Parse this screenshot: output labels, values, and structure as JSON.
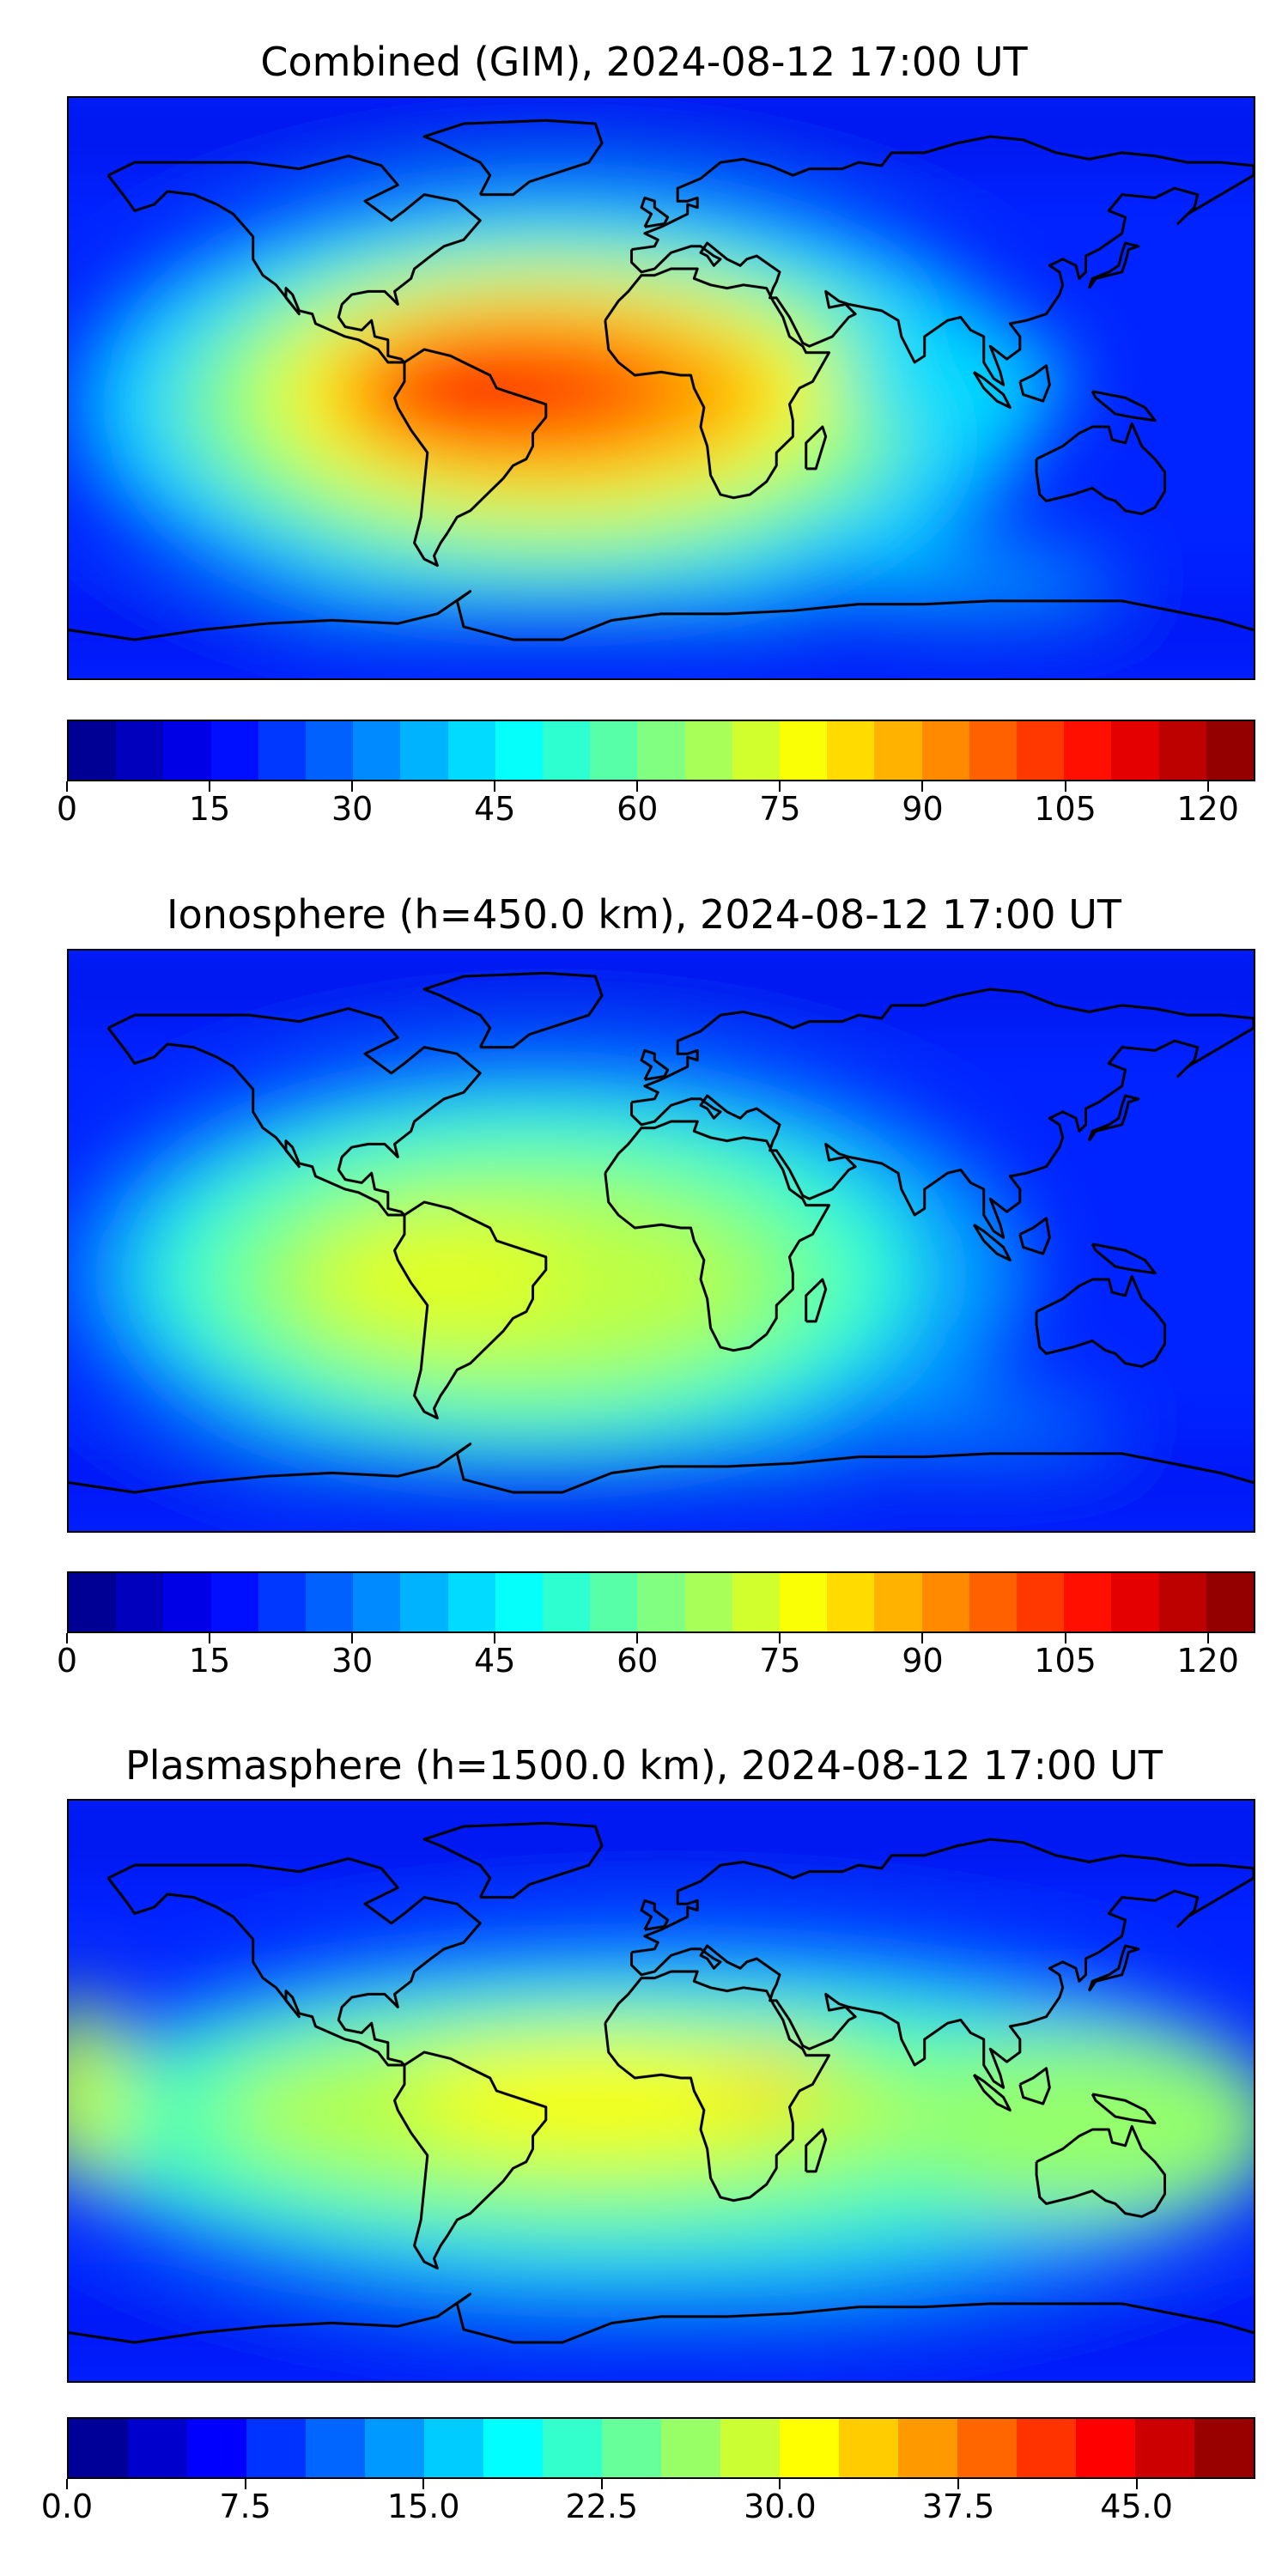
{
  "panels": [
    {
      "title": "Combined (GIM), 2024-08-12 17:00 UT",
      "colorbar": {
        "min": 0,
        "max": 125,
        "step": 5,
        "ticks": [
          0,
          15,
          30,
          45,
          60,
          75,
          90,
          105,
          120
        ],
        "tick_labels": [
          "0",
          "15",
          "30",
          "45",
          "60",
          "75",
          "90",
          "105",
          "120"
        ]
      },
      "peak_region": "South America / equatorial Atlantic",
      "peak_value_approx": 110
    },
    {
      "title": "Ionosphere  (h=450.0 km), 2024-08-12 17:00 UT",
      "colorbar": {
        "min": 0,
        "max": 125,
        "step": 5,
        "ticks": [
          0,
          15,
          30,
          45,
          60,
          75,
          90,
          105,
          120
        ],
        "tick_labels": [
          "0",
          "15",
          "30",
          "45",
          "60",
          "75",
          "90",
          "105",
          "120"
        ]
      },
      "peak_region": "South America / tropical Atlantic",
      "peak_value_approx": 75
    },
    {
      "title": "Plasmasphere (h=1500.0 km), 2024-08-12 17:00 UT",
      "colorbar": {
        "min": 0.0,
        "max": 50.0,
        "step": 2.5,
        "ticks": [
          0.0,
          7.5,
          15.0,
          22.5,
          30.0,
          37.5,
          45.0
        ],
        "tick_labels": [
          "0.0",
          "7.5",
          "15.0",
          "22.5",
          "30.0",
          "37.5",
          "45.0"
        ]
      },
      "peak_region": "Africa / equatorial belt",
      "peak_value_approx": 32
    }
  ],
  "colormap": "jet",
  "colors": {
    "frame": "#000000",
    "coastline": "#000000"
  }
}
